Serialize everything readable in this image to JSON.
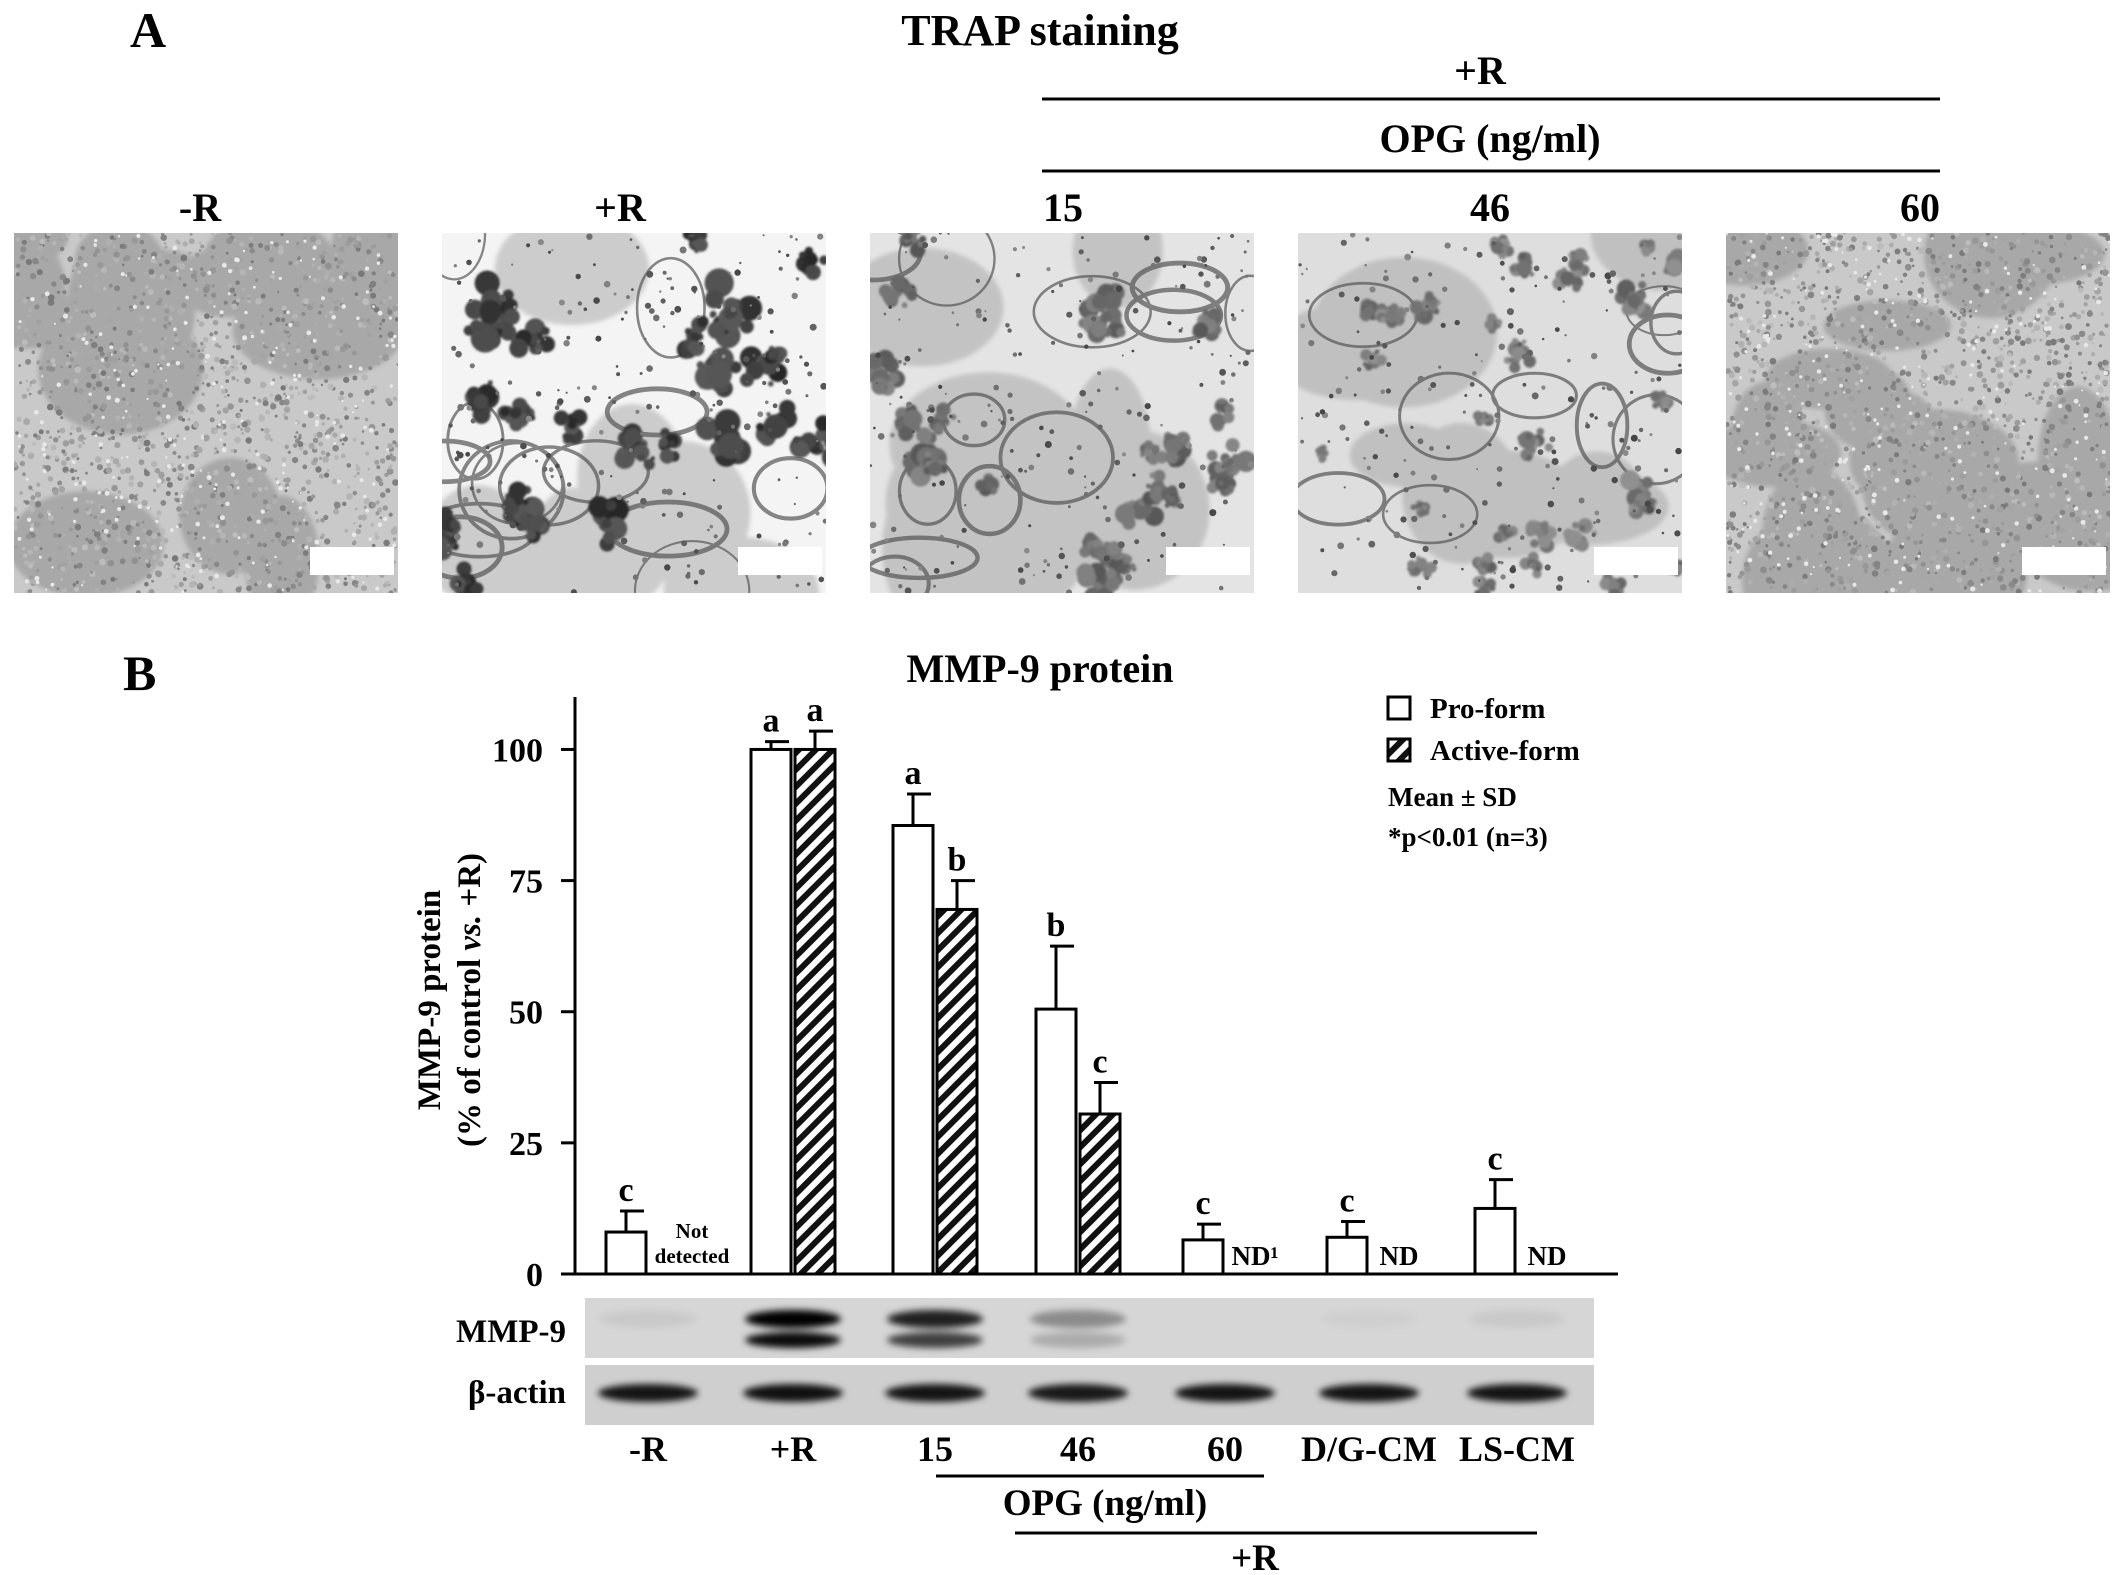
{
  "panel_a": {
    "letter": "A",
    "title": "TRAP staining",
    "group_label": "+R",
    "opg_label": "OPG (ng/ml)",
    "images": [
      {
        "label": "-R",
        "style": "dense-fine"
      },
      {
        "label": "+R",
        "style": "large-clusters"
      },
      {
        "label": "15",
        "style": "medium-clusters"
      },
      {
        "label": "46",
        "style": "small-clusters"
      },
      {
        "label": "60",
        "style": "dense-fine"
      }
    ]
  },
  "panel_b": {
    "letter": "B",
    "title": "MMP-9 protein",
    "legend": {
      "pro_label": "Pro-form",
      "active_label": "Active-form",
      "stat_line1": "Mean ± SD",
      "stat_line2": "*p<0.01 (n=3)"
    },
    "not_detected_line1": "Not",
    "not_detected_line2": "detected",
    "blot": {
      "mmp9_label": "MMP-9",
      "actin_label": "β-actin",
      "mmp9_upper_intensity": [
        0.06,
        1.0,
        0.85,
        0.35,
        0.0,
        0.03,
        0.06
      ],
      "mmp9_lower_intensity": [
        0.0,
        0.95,
        0.7,
        0.2,
        0.0,
        0.0,
        0.0
      ],
      "actin_intensity": [
        0.9,
        0.92,
        0.9,
        0.88,
        0.9,
        0.9,
        0.9
      ]
    },
    "bottom_opg_label": "OPG (ng/ml)",
    "bottom_group_label": "+R"
  },
  "chart_data": {
    "type": "bar",
    "title": "MMP-9 protein",
    "ylabel_line1": "MMP-9 protein",
    "ylabel_line2_pre": "(% of control ",
    "ylabel_line2_italic": "vs.",
    "ylabel_line2_post": " +R)",
    "ylim": [
      0,
      110
    ],
    "yticks": [
      0,
      25,
      50,
      75,
      100
    ],
    "categories": [
      "-R",
      "+R",
      "15",
      "46",
      "60",
      "D/G-CM",
      "LS-CM"
    ],
    "series": [
      {
        "name": "Pro-form",
        "values": [
          8,
          100,
          85.5,
          50.5,
          6.5,
          7,
          12.5
        ],
        "errors": [
          4,
          1.5,
          6,
          12,
          3,
          3,
          5.5
        ],
        "letters": [
          "c",
          "a",
          "a",
          "b",
          "c",
          "c",
          "c"
        ]
      },
      {
        "name": "Active-form",
        "values": [
          null,
          100,
          69.5,
          30.5,
          null,
          null,
          null
        ],
        "errors": [
          null,
          3.5,
          5.5,
          6,
          null,
          null,
          null
        ],
        "letters": [
          "",
          "a",
          "b",
          "c",
          "",
          "",
          ""
        ],
        "nd_labels": [
          "",
          "",
          "",
          "",
          "ND¹",
          "ND",
          "ND"
        ]
      }
    ],
    "legend_position": "top-right",
    "grid": false
  }
}
